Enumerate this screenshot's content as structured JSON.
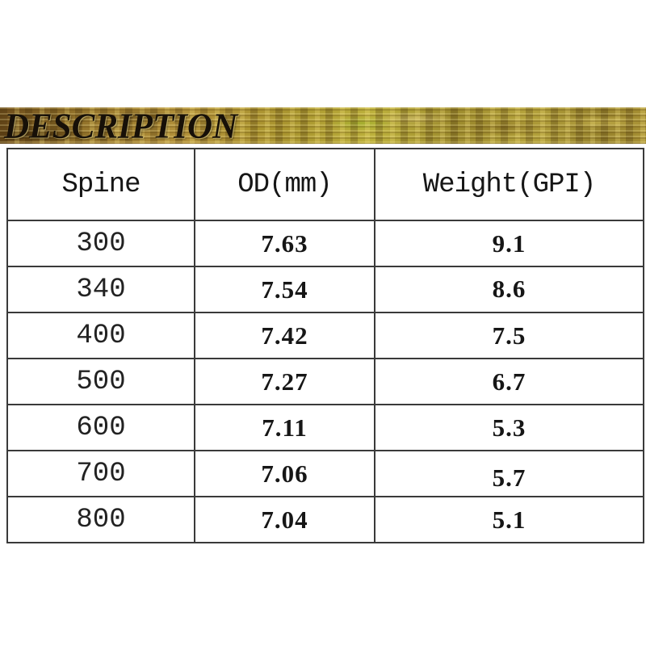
{
  "banner": {
    "title": "DESCRIPTION",
    "gold_base_color": "#a9882f",
    "text_color": "#171008"
  },
  "table": {
    "border_color": "#3a3a3a",
    "headers": [
      "Spine",
      "OD(mm)",
      "Weight(GPI)"
    ],
    "rows": [
      [
        "300",
        "7.63",
        "9.1"
      ],
      [
        "340",
        "7.54",
        "8.6"
      ],
      [
        "400",
        "7.42",
        "7.5"
      ],
      [
        "500",
        "7.27",
        "6.7"
      ],
      [
        "600",
        "7.11",
        "5.3"
      ],
      [
        "700",
        "7.06",
        "5.7"
      ],
      [
        "800",
        "7.04",
        "5.1"
      ]
    ]
  }
}
